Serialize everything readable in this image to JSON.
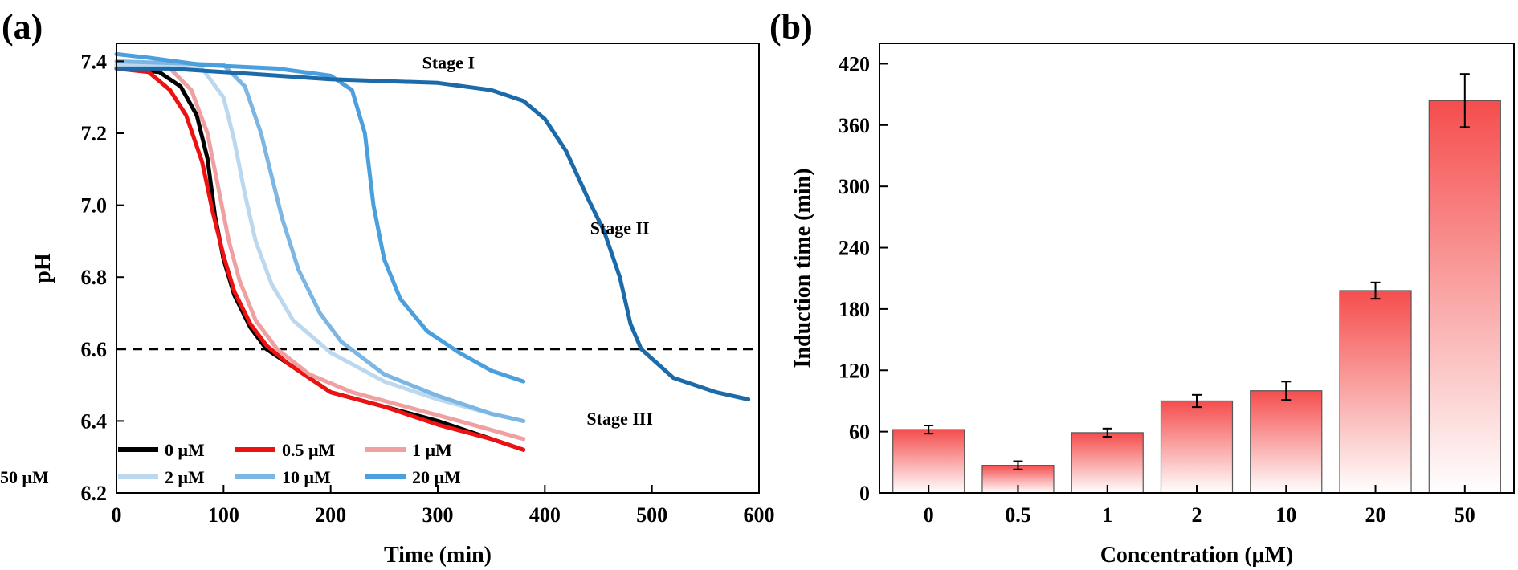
{
  "chart_data": [
    {
      "type": "line",
      "panel_label": "(a)",
      "xlabel": "Time (min)",
      "ylabel": "pH",
      "xlim": [
        0,
        600
      ],
      "ylim": [
        6.2,
        7.45
      ],
      "xticks": [
        "0",
        "100",
        "200",
        "300",
        "400",
        "500",
        "600"
      ],
      "yticks": [
        "6.2",
        "6.4",
        "6.6",
        "6.8",
        "7.0",
        "7.2",
        "7.4"
      ],
      "reference_line": {
        "y": 6.6,
        "style": "dashed"
      },
      "annotations": [
        {
          "text": "Stage I",
          "x": 310,
          "y": 7.38
        },
        {
          "text": "Stage II",
          "x": 470,
          "y": 6.92
        },
        {
          "text": "Stage III",
          "x": 470,
          "y": 6.39
        }
      ],
      "legend_position": "bottom-left",
      "series": [
        {
          "name": "0 μM",
          "color": "#000000",
          "x": [
            0,
            40,
            60,
            75,
            85,
            92,
            100,
            110,
            125,
            140,
            160,
            200,
            250,
            300,
            350,
            380
          ],
          "y": [
            7.38,
            7.37,
            7.33,
            7.25,
            7.13,
            6.97,
            6.85,
            6.75,
            6.66,
            6.6,
            6.56,
            6.48,
            6.44,
            6.4,
            6.35,
            6.32
          ]
        },
        {
          "name": "0.5 μM",
          "color": "#ee1111",
          "x": [
            0,
            30,
            50,
            65,
            80,
            90,
            100,
            110,
            125,
            140,
            160,
            200,
            250,
            300,
            350,
            380
          ],
          "y": [
            7.38,
            7.37,
            7.32,
            7.25,
            7.12,
            6.98,
            6.86,
            6.76,
            6.67,
            6.61,
            6.56,
            6.48,
            6.44,
            6.39,
            6.35,
            6.32
          ]
        },
        {
          "name": "1 μM",
          "color": "#f0a0a0",
          "x": [
            0,
            50,
            70,
            85,
            95,
            105,
            115,
            130,
            150,
            180,
            220,
            270,
            320,
            380
          ],
          "y": [
            7.39,
            7.38,
            7.32,
            7.2,
            7.05,
            6.9,
            6.79,
            6.68,
            6.6,
            6.53,
            6.48,
            6.44,
            6.4,
            6.35
          ]
        },
        {
          "name": "2 μM",
          "color": "#bcd8ee",
          "x": [
            0,
            80,
            100,
            110,
            120,
            130,
            145,
            165,
            200,
            250,
            300,
            350,
            380
          ],
          "y": [
            7.39,
            7.38,
            7.3,
            7.18,
            7.03,
            6.9,
            6.78,
            6.68,
            6.59,
            6.51,
            6.46,
            6.42,
            6.4
          ]
        },
        {
          "name": "10 μM",
          "color": "#7db6e2",
          "x": [
            0,
            100,
            120,
            135,
            145,
            155,
            170,
            190,
            210,
            250,
            300,
            350,
            380
          ],
          "y": [
            7.4,
            7.39,
            7.33,
            7.2,
            7.08,
            6.96,
            6.82,
            6.7,
            6.62,
            6.53,
            6.47,
            6.42,
            6.4
          ]
        },
        {
          "name": "20 μM",
          "color": "#4a9fdc",
          "x": [
            0,
            30,
            80,
            150,
            200,
            220,
            232,
            240,
            250,
            265,
            290,
            320,
            350,
            380
          ],
          "y": [
            7.42,
            7.41,
            7.39,
            7.38,
            7.36,
            7.32,
            7.2,
            7.0,
            6.85,
            6.74,
            6.65,
            6.59,
            6.54,
            6.51
          ]
        },
        {
          "name": "50 μM",
          "color": "#1c6aa8",
          "x": [
            0,
            50,
            100,
            200,
            300,
            350,
            380,
            400,
            420,
            440,
            455,
            470,
            480,
            490,
            520,
            560,
            590
          ],
          "y": [
            7.38,
            7.38,
            7.37,
            7.35,
            7.34,
            7.32,
            7.29,
            7.24,
            7.15,
            7.02,
            6.93,
            6.8,
            6.67,
            6.6,
            6.52,
            6.48,
            6.46
          ]
        }
      ]
    },
    {
      "type": "bar",
      "panel_label": "(b)",
      "xlabel": "Concentration (μM)",
      "ylabel": "Induction time (min)",
      "ylim": [
        0,
        440
      ],
      "yticks": [
        "0",
        "60",
        "120",
        "180",
        "240",
        "300",
        "360",
        "420"
      ],
      "categories": [
        "0",
        "0.5",
        "1",
        "2",
        "10",
        "20",
        "50"
      ],
      "values": [
        62,
        27,
        59,
        90,
        100,
        198,
        384
      ],
      "errors": [
        4,
        4,
        4,
        6,
        9,
        8,
        26
      ],
      "bar_color_top": "#f54d4d",
      "bar_color_bottom": "#ffffff"
    }
  ]
}
